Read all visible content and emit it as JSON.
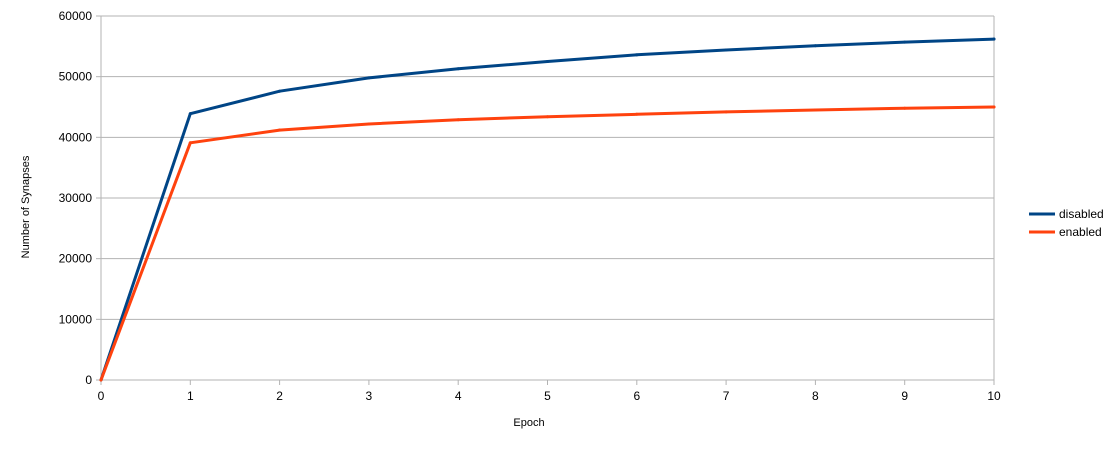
{
  "chart_data": {
    "type": "line",
    "xlabel": "Epoch",
    "ylabel": "Number of Synapses",
    "xlim": [
      0,
      10
    ],
    "ylim": [
      0,
      60000
    ],
    "x_ticks": [
      "0",
      "1",
      "2",
      "3",
      "4",
      "5",
      "6",
      "7",
      "8",
      "9",
      "10"
    ],
    "y_ticks": [
      "0",
      "10000",
      "20000",
      "30000",
      "40000",
      "50000",
      "60000"
    ],
    "grid": "horizontal",
    "legend_position": "right",
    "x": [
      0,
      1,
      2,
      3,
      4,
      5,
      6,
      7,
      8,
      9,
      10
    ],
    "series": [
      {
        "name": "disabled",
        "color": "#004586",
        "values": [
          0,
          43900,
          47600,
          49800,
          51300,
          52500,
          53600,
          54400,
          55100,
          55700,
          56200
        ]
      },
      {
        "name": "enabled",
        "color": "#ff420e",
        "values": [
          0,
          39100,
          41200,
          42200,
          42900,
          43400,
          43800,
          44200,
          44500,
          44800,
          45000
        ]
      }
    ]
  }
}
